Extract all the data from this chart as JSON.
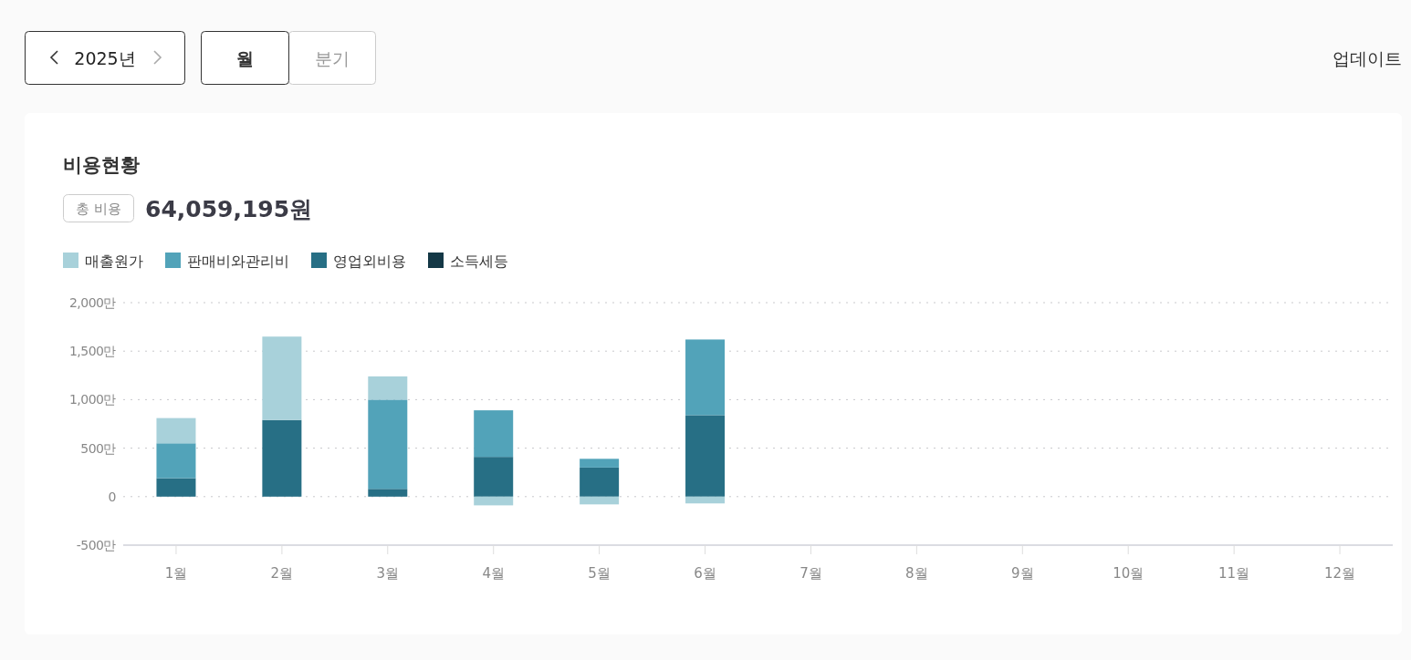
{
  "chart_data": {
    "type": "bar",
    "title": "비용현황",
    "subtitle": "64,059,195원",
    "annotations": [
      "2025년",
      "월",
      "분기",
      "업데이트",
      "총 비용"
    ],
    "categories": [
      "1월",
      "2월",
      "3월",
      "4월",
      "5월",
      "6월",
      "7월",
      "8월",
      "9월",
      "10월",
      "11월",
      "12월"
    ],
    "stacked": true,
    "legend": "top left",
    "grid": "y",
    "ylim": [
      -500,
      2000
    ],
    "yticks": [
      {
        "value": -500,
        "label": "-500만"
      },
      {
        "value": 0,
        "label": "0"
      },
      {
        "value": 500,
        "label": "500만"
      },
      {
        "value": 1000,
        "label": "1,000만"
      },
      {
        "value": 1500,
        "label": "1,500만"
      },
      {
        "value": 2000,
        "label": "2,000만"
      }
    ],
    "series": [
      {
        "name": "소득세등",
        "color": "#143846",
        "values": [
          null,
          null,
          null,
          null,
          null,
          null,
          null,
          null,
          null,
          null,
          null,
          null
        ]
      },
      {
        "name": "영업외비용",
        "color": "#276f85",
        "values": [
          190,
          790,
          80,
          410,
          300,
          840,
          null,
          null,
          null,
          null,
          null,
          null
        ]
      },
      {
        "name": "판매비와관리비",
        "color": "#52a3b9",
        "values": [
          360,
          null,
          920,
          480,
          90,
          780,
          null,
          null,
          null,
          null,
          null,
          null
        ]
      },
      {
        "name": "매출원가",
        "color": "#a8d1da",
        "values": [
          260,
          860,
          240,
          -90,
          -80,
          -70,
          null,
          null,
          null,
          null,
          null,
          null
        ]
      }
    ]
  }
}
